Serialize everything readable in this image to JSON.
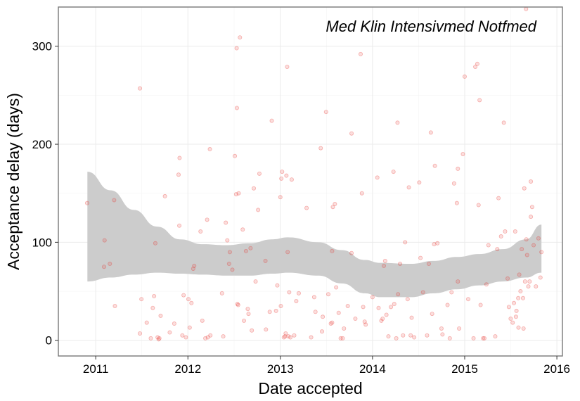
{
  "chart_data": {
    "type": "scatter",
    "title": "",
    "annotation": "Med Klin Intensivmed Notfmed",
    "xlabel": "Date accepted",
    "ylabel": "Acceptance delay (days)",
    "x_ticks": [
      "2011",
      "2012",
      "2013",
      "2014",
      "2015",
      "2016"
    ],
    "y_ticks": [
      "0",
      "100",
      "200",
      "300"
    ],
    "xlim": [
      "2010-08-06",
      "2016-01-23"
    ],
    "ylim": [
      -16,
      340
    ],
    "grid": true,
    "legend": "none",
    "point_color": "#e8312a",
    "band_color": "#cccccc",
    "frame_color": "#777777",
    "points": [
      {
        "x": "2010-11-28",
        "y": 140
      },
      {
        "x": "2011-02-03",
        "y": 75
      },
      {
        "x": "2011-02-05",
        "y": 102
      },
      {
        "x": "2011-02-26",
        "y": 78
      },
      {
        "x": "2011-03-15",
        "y": 143
      },
      {
        "x": "2011-03-18",
        "y": 35
      },
      {
        "x": "2011-06-25",
        "y": 257
      },
      {
        "x": "2011-06-25",
        "y": 7
      },
      {
        "x": "2011-07-01",
        "y": 42
      },
      {
        "x": "2011-07-22",
        "y": 18
      },
      {
        "x": "2011-08-07",
        "y": 2
      },
      {
        "x": "2011-08-15",
        "y": 33
      },
      {
        "x": "2011-08-20",
        "y": 45
      },
      {
        "x": "2011-08-25",
        "y": 99
      },
      {
        "x": "2011-09-03",
        "y": 3
      },
      {
        "x": "2011-09-07",
        "y": 1
      },
      {
        "x": "2011-09-10",
        "y": 2
      },
      {
        "x": "2011-09-15",
        "y": 25
      },
      {
        "x": "2011-10-02",
        "y": 147
      },
      {
        "x": "2011-10-21",
        "y": 8
      },
      {
        "x": "2011-11-08",
        "y": 17
      },
      {
        "x": "2011-11-25",
        "y": 169
      },
      {
        "x": "2011-11-28",
        "y": 117
      },
      {
        "x": "2011-11-29",
        "y": 186
      },
      {
        "x": "2011-12-10",
        "y": 5
      },
      {
        "x": "2011-12-15",
        "y": 46
      },
      {
        "x": "2011-12-24",
        "y": 3
      },
      {
        "x": "2012-01-03",
        "y": 42
      },
      {
        "x": "2012-01-08",
        "y": 13
      },
      {
        "x": "2012-01-15",
        "y": 38
      },
      {
        "x": "2012-01-22",
        "y": 73
      },
      {
        "x": "2012-01-26",
        "y": 76
      },
      {
        "x": "2012-02-20",
        "y": 111
      },
      {
        "x": "2012-02-27",
        "y": 20
      },
      {
        "x": "2012-03-10",
        "y": 2
      },
      {
        "x": "2012-03-17",
        "y": 123
      },
      {
        "x": "2012-03-20",
        "y": 3
      },
      {
        "x": "2012-03-28",
        "y": 195
      },
      {
        "x": "2012-03-30",
        "y": 5
      },
      {
        "x": "2012-05-15",
        "y": 48
      },
      {
        "x": "2012-05-20",
        "y": 4
      },
      {
        "x": "2012-05-30",
        "y": 120
      },
      {
        "x": "2012-06-05",
        "y": 102
      },
      {
        "x": "2012-06-12",
        "y": 78
      },
      {
        "x": "2012-06-15",
        "y": 90
      },
      {
        "x": "2012-06-25",
        "y": 72
      },
      {
        "x": "2012-07-05",
        "y": 188
      },
      {
        "x": "2012-07-10",
        "y": 149
      },
      {
        "x": "2012-07-12",
        "y": 298
      },
      {
        "x": "2012-07-13",
        "y": 237
      },
      {
        "x": "2012-07-15",
        "y": 37
      },
      {
        "x": "2012-07-18",
        "y": 36
      },
      {
        "x": "2012-07-20",
        "y": 150
      },
      {
        "x": "2012-07-25",
        "y": 309
      },
      {
        "x": "2012-08-05",
        "y": 113
      },
      {
        "x": "2012-08-10",
        "y": 20
      },
      {
        "x": "2012-08-18",
        "y": 91
      },
      {
        "x": "2012-08-25",
        "y": 32
      },
      {
        "x": "2012-08-28",
        "y": 27
      },
      {
        "x": "2012-09-05",
        "y": 94
      },
      {
        "x": "2012-09-10",
        "y": 10
      },
      {
        "x": "2012-09-18",
        "y": 155
      },
      {
        "x": "2012-09-25",
        "y": 60
      },
      {
        "x": "2012-10-05",
        "y": 133
      },
      {
        "x": "2012-10-10",
        "y": 170
      },
      {
        "x": "2012-11-03",
        "y": 81
      },
      {
        "x": "2012-11-05",
        "y": 11
      },
      {
        "x": "2012-11-20",
        "y": 29
      },
      {
        "x": "2012-11-28",
        "y": 224
      },
      {
        "x": "2012-12-15",
        "y": 30
      },
      {
        "x": "2012-12-20",
        "y": 56
      },
      {
        "x": "2013-01-01",
        "y": 146
      },
      {
        "x": "2013-01-03",
        "y": 35
      },
      {
        "x": "2013-01-05",
        "y": 165
      },
      {
        "x": "2013-01-08",
        "y": 172
      },
      {
        "x": "2013-01-15",
        "y": 3
      },
      {
        "x": "2013-01-20",
        "y": 4
      },
      {
        "x": "2013-01-22",
        "y": 7
      },
      {
        "x": "2013-01-25",
        "y": 168
      },
      {
        "x": "2013-01-28",
        "y": 279
      },
      {
        "x": "2013-01-30",
        "y": 90
      },
      {
        "x": "2013-02-02",
        "y": 4
      },
      {
        "x": "2013-02-05",
        "y": 49
      },
      {
        "x": "2013-02-10",
        "y": 3
      },
      {
        "x": "2013-02-15",
        "y": 164
      },
      {
        "x": "2013-02-25",
        "y": 5
      },
      {
        "x": "2013-03-05",
        "y": 40
      },
      {
        "x": "2013-03-15",
        "y": 48
      },
      {
        "x": "2013-04-15",
        "y": 135
      },
      {
        "x": "2013-05-03",
        "y": 3
      },
      {
        "x": "2013-05-15",
        "y": 44
      },
      {
        "x": "2013-05-20",
        "y": 29
      },
      {
        "x": "2013-06-10",
        "y": 196
      },
      {
        "x": "2013-06-15",
        "y": 9
      },
      {
        "x": "2013-06-18",
        "y": 24
      },
      {
        "x": "2013-07-01",
        "y": 233
      },
      {
        "x": "2013-07-10",
        "y": 47
      },
      {
        "x": "2013-07-20",
        "y": 17
      },
      {
        "x": "2013-07-25",
        "y": 91
      },
      {
        "x": "2013-07-25",
        "y": 18
      },
      {
        "x": "2013-07-28",
        "y": 136
      },
      {
        "x": "2013-08-05",
        "y": 139
      },
      {
        "x": "2013-08-10",
        "y": 54
      },
      {
        "x": "2013-08-20",
        "y": 28
      },
      {
        "x": "2013-08-28",
        "y": 2
      },
      {
        "x": "2013-09-05",
        "y": 2
      },
      {
        "x": "2013-09-10",
        "y": 12
      },
      {
        "x": "2013-09-25",
        "y": 35
      },
      {
        "x": "2013-10-10",
        "y": 211
      },
      {
        "x": "2013-10-10",
        "y": 89
      },
      {
        "x": "2013-10-25",
        "y": 22
      },
      {
        "x": "2013-11-15",
        "y": 292
      },
      {
        "x": "2013-11-20",
        "y": 150
      },
      {
        "x": "2013-11-25",
        "y": 34
      },
      {
        "x": "2013-12-01",
        "y": 19
      },
      {
        "x": "2013-12-05",
        "y": 16
      },
      {
        "x": "2014-01-01",
        "y": 44
      },
      {
        "x": "2014-01-20",
        "y": 166
      },
      {
        "x": "2014-01-25",
        "y": 33
      },
      {
        "x": "2014-02-05",
        "y": 20
      },
      {
        "x": "2014-02-10",
        "y": 22
      },
      {
        "x": "2014-02-15",
        "y": 76
      },
      {
        "x": "2014-02-20",
        "y": 81
      },
      {
        "x": "2014-02-25",
        "y": 26
      },
      {
        "x": "2014-03-05",
        "y": 4
      },
      {
        "x": "2014-03-15",
        "y": 34
      },
      {
        "x": "2014-03-25",
        "y": 172
      },
      {
        "x": "2014-03-28",
        "y": 37
      },
      {
        "x": "2014-04-05",
        "y": 2
      },
      {
        "x": "2014-04-10",
        "y": 222
      },
      {
        "x": "2014-04-12",
        "y": 47
      },
      {
        "x": "2014-04-20",
        "y": 78
      },
      {
        "x": "2014-05-02",
        "y": 5
      },
      {
        "x": "2014-05-10",
        "y": 100
      },
      {
        "x": "2014-05-20",
        "y": 42
      },
      {
        "x": "2014-05-25",
        "y": 156
      },
      {
        "x": "2014-06-01",
        "y": 5
      },
      {
        "x": "2014-06-05",
        "y": 23
      },
      {
        "x": "2014-06-15",
        "y": 3
      },
      {
        "x": "2014-07-05",
        "y": 161
      },
      {
        "x": "2014-07-10",
        "y": 84
      },
      {
        "x": "2014-07-20",
        "y": 49
      },
      {
        "x": "2014-08-05",
        "y": 5
      },
      {
        "x": "2014-08-12",
        "y": 78
      },
      {
        "x": "2014-08-20",
        "y": 212
      },
      {
        "x": "2014-08-25",
        "y": 27
      },
      {
        "x": "2014-09-02",
        "y": 98
      },
      {
        "x": "2014-09-05",
        "y": 178
      },
      {
        "x": "2014-09-15",
        "y": 99
      },
      {
        "x": "2014-10-01",
        "y": 12
      },
      {
        "x": "2014-10-05",
        "y": 6
      },
      {
        "x": "2014-10-25",
        "y": 36
      },
      {
        "x": "2014-11-03",
        "y": 2
      },
      {
        "x": "2014-11-10",
        "y": 49
      },
      {
        "x": "2014-11-20",
        "y": 160
      },
      {
        "x": "2014-12-01",
        "y": 140
      },
      {
        "x": "2014-12-05",
        "y": 175
      },
      {
        "x": "2014-12-05",
        "y": 60
      },
      {
        "x": "2014-12-10",
        "y": 12
      },
      {
        "x": "2014-12-25",
        "y": 190
      },
      {
        "x": "2015-01-01",
        "y": 269
      },
      {
        "x": "2015-01-15",
        "y": 42
      },
      {
        "x": "2015-02-05",
        "y": 2
      },
      {
        "x": "2015-02-12",
        "y": 279
      },
      {
        "x": "2015-02-20",
        "y": 282
      },
      {
        "x": "2015-02-25",
        "y": 138
      },
      {
        "x": "2015-03-01",
        "y": 245
      },
      {
        "x": "2015-03-05",
        "y": 36
      },
      {
        "x": "2015-03-15",
        "y": 2
      },
      {
        "x": "2015-03-20",
        "y": 2
      },
      {
        "x": "2015-03-28",
        "y": 57
      },
      {
        "x": "2015-04-05",
        "y": 97
      },
      {
        "x": "2015-05-02",
        "y": 4
      },
      {
        "x": "2015-05-10",
        "y": 93
      },
      {
        "x": "2015-05-15",
        "y": 145
      },
      {
        "x": "2015-05-25",
        "y": 106
      },
      {
        "x": "2015-06-05",
        "y": 222
      },
      {
        "x": "2015-06-10",
        "y": 111
      },
      {
        "x": "2015-06-20",
        "y": 63
      },
      {
        "x": "2015-06-25",
        "y": 34
      },
      {
        "x": "2015-07-02",
        "y": 22
      },
      {
        "x": "2015-07-10",
        "y": 18
      },
      {
        "x": "2015-07-15",
        "y": 38
      },
      {
        "x": "2015-07-20",
        "y": 111
      },
      {
        "x": "2015-07-23",
        "y": 24
      },
      {
        "x": "2015-07-25",
        "y": 30
      },
      {
        "x": "2015-08-01",
        "y": 43
      },
      {
        "x": "2015-08-02",
        "y": 13
      },
      {
        "x": "2015-08-05",
        "y": 67
      },
      {
        "x": "2015-08-10",
        "y": 50
      },
      {
        "x": "2015-08-15",
        "y": 93
      },
      {
        "x": "2015-08-20",
        "y": 43
      },
      {
        "x": "2015-08-22",
        "y": 12
      },
      {
        "x": "2015-08-25",
        "y": 155
      },
      {
        "x": "2015-08-28",
        "y": 60
      },
      {
        "x": "2015-09-01",
        "y": 338
      },
      {
        "x": "2015-09-02",
        "y": 103
      },
      {
        "x": "2015-09-05",
        "y": 87
      },
      {
        "x": "2015-09-10",
        "y": 55
      },
      {
        "x": "2015-09-15",
        "y": 60
      },
      {
        "x": "2015-09-20",
        "y": 126
      },
      {
        "x": "2015-09-20",
        "y": 162
      },
      {
        "x": "2015-09-25",
        "y": 136
      },
      {
        "x": "2015-10-01",
        "y": 97
      },
      {
        "x": "2015-10-10",
        "y": 55
      },
      {
        "x": "2015-10-20",
        "y": 104
      },
      {
        "x": "2015-10-28",
        "y": 64
      },
      {
        "x": "2015-11-01",
        "y": 90
      }
    ],
    "band": [
      {
        "x": "2010-11-29",
        "lower": 60,
        "upper": 172
      },
      {
        "x": "2011-03-01",
        "lower": 64,
        "upper": 153
      },
      {
        "x": "2011-06-01",
        "lower": 67,
        "upper": 133
      },
      {
        "x": "2011-09-01",
        "lower": 69,
        "upper": 116
      },
      {
        "x": "2011-12-01",
        "lower": 68,
        "upper": 103
      },
      {
        "x": "2012-03-01",
        "lower": 67,
        "upper": 98
      },
      {
        "x": "2012-06-01",
        "lower": 66,
        "upper": 97
      },
      {
        "x": "2012-09-01",
        "lower": 66,
        "upper": 99
      },
      {
        "x": "2012-12-01",
        "lower": 68,
        "upper": 103
      },
      {
        "x": "2013-02-01",
        "lower": 69,
        "upper": 105
      },
      {
        "x": "2013-06-01",
        "lower": 66,
        "upper": 100
      },
      {
        "x": "2013-09-01",
        "lower": 58,
        "upper": 92
      },
      {
        "x": "2013-12-01",
        "lower": 48,
        "upper": 82
      },
      {
        "x": "2014-02-01",
        "lower": 44,
        "upper": 79
      },
      {
        "x": "2014-06-01",
        "lower": 44,
        "upper": 78
      },
      {
        "x": "2014-09-01",
        "lower": 48,
        "upper": 81
      },
      {
        "x": "2014-12-01",
        "lower": 52,
        "upper": 85
      },
      {
        "x": "2015-03-01",
        "lower": 56,
        "upper": 88
      },
      {
        "x": "2015-06-01",
        "lower": 60,
        "upper": 93
      },
      {
        "x": "2015-09-01",
        "lower": 64,
        "upper": 103
      },
      {
        "x": "2015-11-01",
        "lower": 69,
        "upper": 118
      }
    ]
  }
}
